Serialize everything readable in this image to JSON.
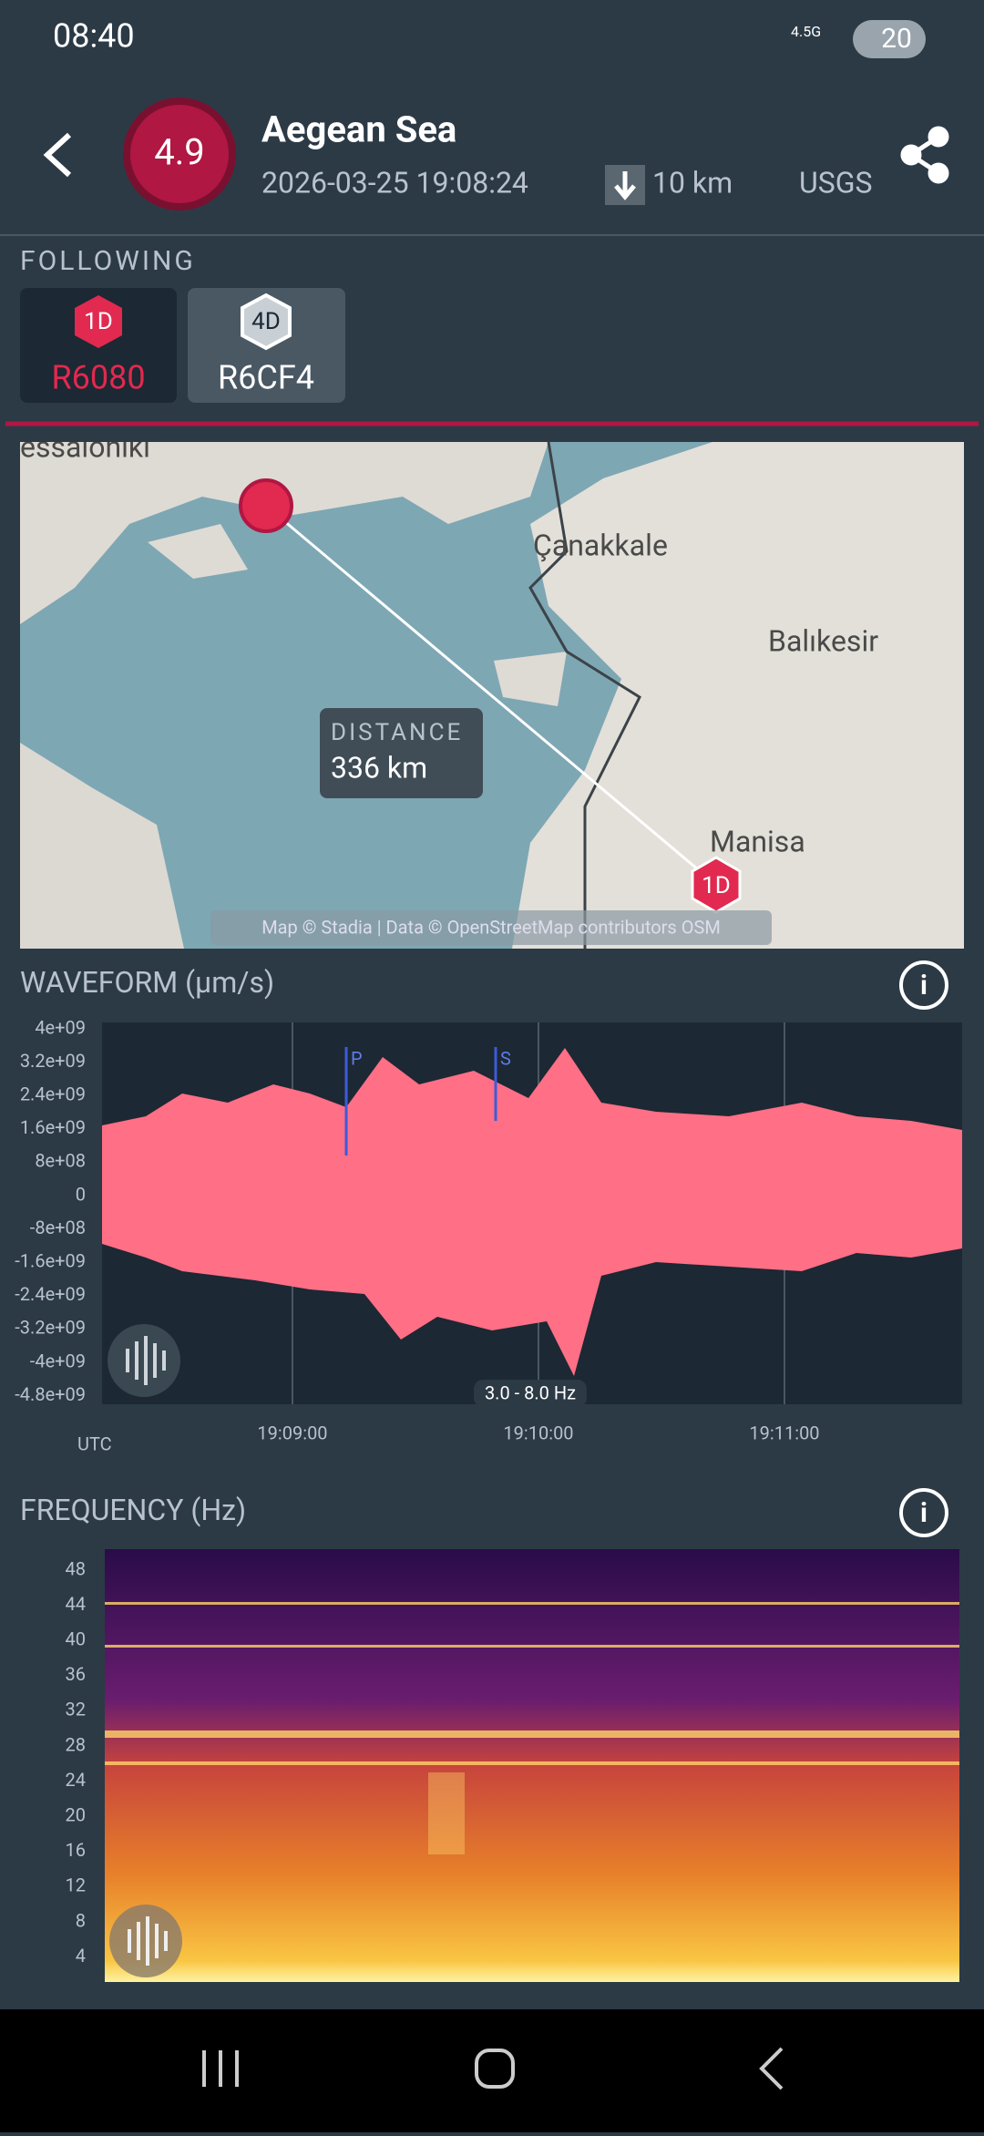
{
  "status_bar": {
    "time": "08:40",
    "network": "4.5G",
    "battery": "20"
  },
  "header": {
    "magnitude": "4.9",
    "title": "Aegean Sea",
    "datetime": "2026-03-25 19:08:24",
    "depth": "10 km",
    "source": "USGS"
  },
  "following": {
    "label": "FOLLOWING",
    "stations": [
      {
        "badge": "1D",
        "name": "R6080"
      },
      {
        "badge": "4D",
        "name": "R6CF4"
      }
    ]
  },
  "map": {
    "places": [
      "essaloniki",
      "Çanakkale",
      "Balıkesir",
      "Manisa"
    ],
    "distance_label": "DISTANCE",
    "distance_value": "336 km",
    "marker_badge": "1D",
    "attribution": "Map © Stadia | Data © OpenStreetMap contributors OSM"
  },
  "waveform": {
    "title": "WAVEFORM",
    "unit": "(µm/s)",
    "y_tick_labels": [
      "4e+09",
      "3.2e+09",
      "2.4e+09",
      "1.6e+09",
      "8e+08",
      "0",
      "-8e+08",
      "-1.6e+09",
      "-2.4e+09",
      "-3.2e+09",
      "-4e+09",
      "-4.8e+09"
    ],
    "x_tick_labels": [
      "19:09:00",
      "19:10:00",
      "19:11:00"
    ],
    "time_zone": "UTC",
    "phases": [
      "P",
      "S"
    ],
    "filter": "3.0 - 8.0 Hz"
  },
  "frequency": {
    "title": "FREQUENCY",
    "unit": "(Hz)",
    "y_tick_labels": [
      "48",
      "44",
      "40",
      "36",
      "32",
      "28",
      "24",
      "20",
      "16",
      "12",
      "8",
      "4"
    ]
  }
}
